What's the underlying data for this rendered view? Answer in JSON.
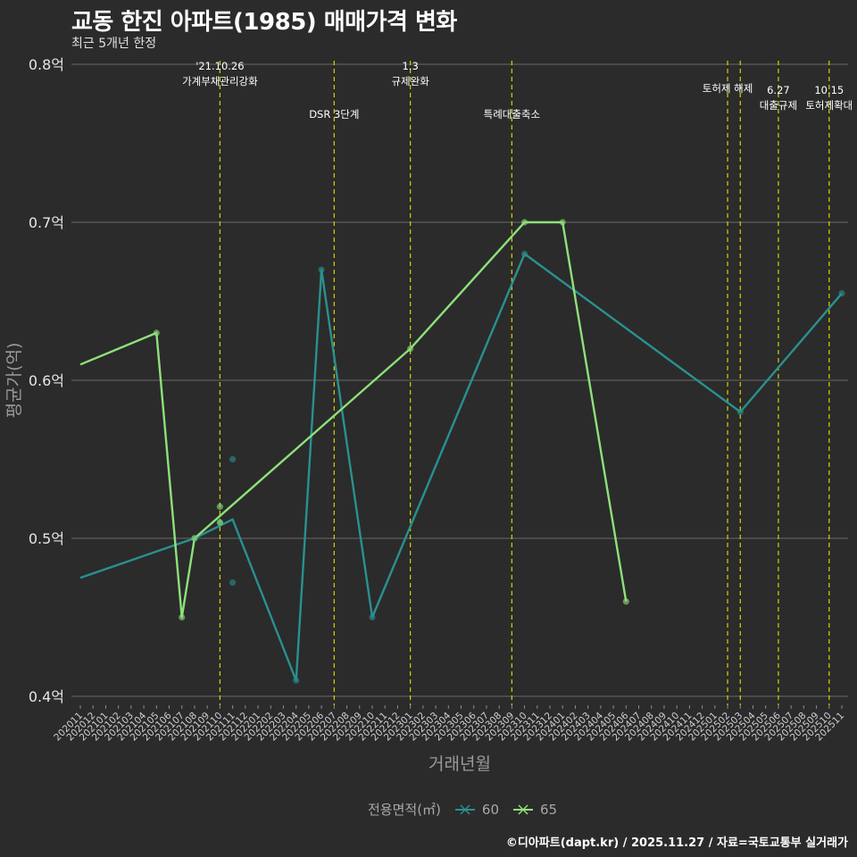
{
  "header": {
    "title": "교동 한진 아파트(1985) 매매가격 변화",
    "subtitle": "최근 5개년 한정"
  },
  "footer": {
    "credit": "©디아파트(dapt.kr) / 2025.11.27 / 자료=국토교통부 실거래가"
  },
  "colors": {
    "background": "#2b2b2b",
    "grid": "#6a6a6a",
    "vline": "#d4d400",
    "series_60": "#2a9090",
    "series_65": "#8ee07a"
  },
  "chart_data": {
    "type": "line",
    "xlabel": "거래년월",
    "ylabel": "평균가(억)",
    "ylim": [
      0.4,
      0.8
    ],
    "y_ticks": [
      {
        "value": 0.4,
        "label": "0.4억"
      },
      {
        "value": 0.5,
        "label": "0.5억"
      },
      {
        "value": 0.6,
        "label": "0.6억"
      },
      {
        "value": 0.7,
        "label": "0.7억"
      },
      {
        "value": 0.8,
        "label": "0.8억"
      }
    ],
    "x_categories": [
      "202011",
      "202012",
      "202101",
      "202102",
      "202103",
      "202104",
      "202105",
      "202106",
      "202107",
      "202108",
      "202109",
      "202110",
      "202111",
      "202112",
      "202201",
      "202202",
      "202203",
      "202204",
      "202205",
      "202206",
      "202207",
      "202208",
      "202209",
      "202210",
      "202211",
      "202212",
      "202301",
      "202302",
      "202303",
      "202304",
      "202305",
      "202306",
      "202307",
      "202308",
      "202309",
      "202310",
      "202311",
      "202312",
      "202401",
      "202402",
      "202403",
      "202404",
      "202405",
      "202406",
      "202407",
      "202408",
      "202409",
      "202410",
      "202411",
      "202412",
      "202501",
      "202502",
      "202503",
      "202504",
      "202505",
      "202506",
      "202507",
      "202508",
      "202509",
      "202510",
      "202511"
    ],
    "legend": {
      "title": "전용면적(㎡)",
      "entries": [
        "60",
        "65"
      ]
    },
    "series": [
      {
        "name": "60",
        "line": [
          {
            "x": "202011",
            "y": 0.475
          },
          {
            "x": "202108",
            "y": 0.5
          },
          {
            "x": "202111",
            "y": 0.512
          },
          {
            "x": "202204",
            "y": 0.41
          },
          {
            "x": "202206",
            "y": 0.67
          },
          {
            "x": "202210",
            "y": 0.45
          },
          {
            "x": "202310",
            "y": 0.68
          },
          {
            "x": "202503",
            "y": 0.58
          },
          {
            "x": "202511",
            "y": 0.655
          }
        ],
        "points": [
          {
            "x": "202108",
            "y": 0.5
          },
          {
            "x": "202110",
            "y": 0.51
          },
          {
            "x": "202111",
            "y": 0.55
          },
          {
            "x": "202111",
            "y": 0.472
          },
          {
            "x": "202204",
            "y": 0.41
          },
          {
            "x": "202206",
            "y": 0.67
          },
          {
            "x": "202210",
            "y": 0.45
          },
          {
            "x": "202310",
            "y": 0.68
          },
          {
            "x": "202503",
            "y": 0.58
          },
          {
            "x": "202511",
            "y": 0.655
          }
        ]
      },
      {
        "name": "65",
        "line": [
          {
            "x": "202011",
            "y": 0.61
          },
          {
            "x": "202105",
            "y": 0.63
          },
          {
            "x": "202107",
            "y": 0.45
          },
          {
            "x": "202108",
            "y": 0.5
          },
          {
            "x": "202301",
            "y": 0.62
          },
          {
            "x": "202310",
            "y": 0.7
          },
          {
            "x": "202401",
            "y": 0.7
          },
          {
            "x": "202406",
            "y": 0.46
          }
        ],
        "points": [
          {
            "x": "202105",
            "y": 0.63
          },
          {
            "x": "202107",
            "y": 0.45
          },
          {
            "x": "202108",
            "y": 0.5
          },
          {
            "x": "202110",
            "y": 0.52
          },
          {
            "x": "202110",
            "y": 0.51
          },
          {
            "x": "202301",
            "y": 0.62
          },
          {
            "x": "202310",
            "y": 0.7
          },
          {
            "x": "202401",
            "y": 0.7
          },
          {
            "x": "202406",
            "y": 0.46
          }
        ]
      }
    ],
    "events": [
      {
        "x": "202110",
        "lines": [
          "'21.10.26",
          "가계부채관리강화"
        ],
        "row": "top"
      },
      {
        "x": "202207",
        "lines": [
          "DSR 3단계"
        ],
        "row": "low"
      },
      {
        "x": "202301",
        "lines": [
          "1.3",
          "규제완화"
        ],
        "row": "top"
      },
      {
        "x": "202309",
        "lines": [
          "특례대출축소"
        ],
        "row": "low"
      },
      {
        "x": "202502",
        "lines": [
          "토허제 해제"
        ],
        "row": "mid"
      },
      {
        "x": "202503",
        "lines": [],
        "row": "none"
      },
      {
        "x": "202506",
        "lines": [
          "6.27",
          "대출규제"
        ],
        "row": "mid2"
      },
      {
        "x": "202510",
        "lines": [
          "10.15",
          "토허제확대"
        ],
        "row": "mid2"
      }
    ]
  }
}
